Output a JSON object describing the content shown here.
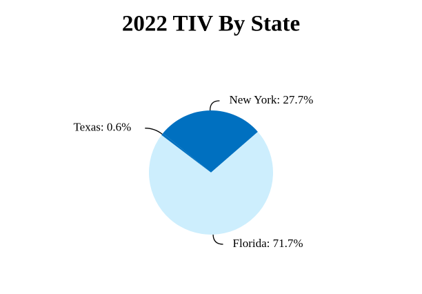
{
  "chart_data": {
    "type": "pie",
    "title": "2022 TIV By State",
    "values": [
      27.7,
      71.7,
      0.6
    ],
    "value_labels": [
      "New York: 27.7%",
      "Florida: 71.7%",
      "Texas: 0.6%"
    ],
    "colors": [
      "#0070c0",
      "#cdeefd",
      "#0070c0"
    ]
  }
}
